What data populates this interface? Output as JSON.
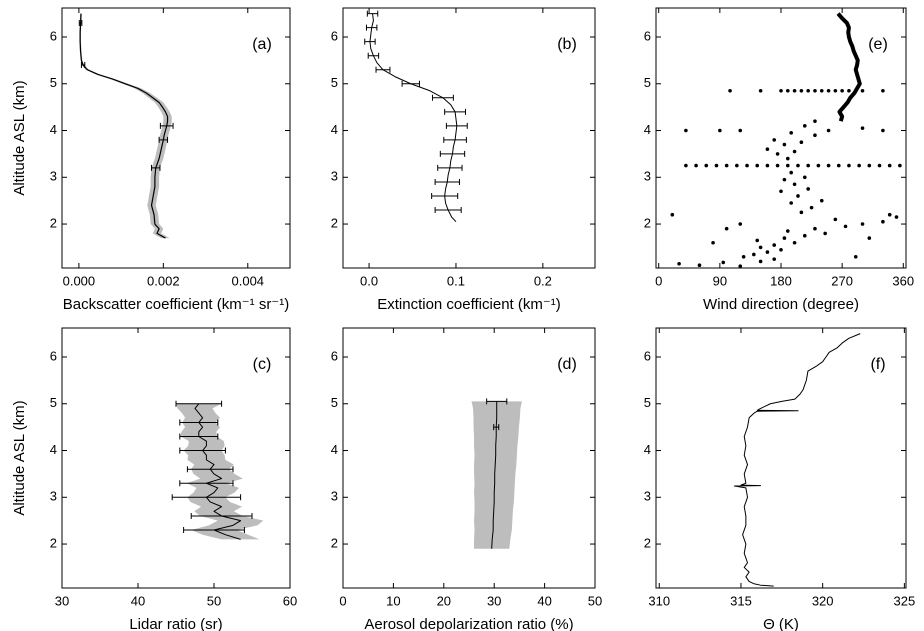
{
  "chart_data": [
    {
      "type": "line",
      "label": "(a)",
      "xlabel": "Backscatter coefficient (km⁻¹ sr⁻¹)",
      "ylabel": "Altitude ASL (km)",
      "xlim": [
        -0.0004,
        0.005
      ],
      "xticks": [
        {
          "value": 0,
          "label": "0.000"
        },
        {
          "value": 0.002,
          "label": "0.002"
        },
        {
          "value": 0.004,
          "label": "0.004"
        }
      ],
      "ylim": [
        1.06,
        6.62
      ],
      "yticks": [
        2,
        3,
        4,
        5,
        6
      ],
      "series": [
        {
          "color": "#000000",
          "band_color": "#bdbdbd",
          "linewidth": 1.2,
          "y": [
            6.5,
            6.3,
            6.1,
            5.9,
            5.7,
            5.5,
            5.4,
            5.3,
            5.2,
            5.1,
            5.0,
            4.9,
            4.8,
            4.7,
            4.6,
            4.5,
            4.4,
            4.3,
            4.2,
            4.1,
            4.0,
            3.9,
            3.8,
            3.6,
            3.4,
            3.2,
            3.0,
            2.8,
            2.6,
            2.4,
            2.2,
            2.0,
            1.9,
            1.8,
            1.7
          ],
          "values": [
            5e-05,
            4e-05,
            3e-05,
            3e-05,
            4e-05,
            6e-05,
            0.0001,
            0.0002,
            0.00045,
            0.0008,
            0.0011,
            0.0014,
            0.0016,
            0.00175,
            0.0019,
            0.00198,
            0.00205,
            0.0021,
            0.0021,
            0.00208,
            0.00205,
            0.00202,
            0.002,
            0.00195,
            0.0019,
            0.00182,
            0.0018,
            0.0018,
            0.00176,
            0.00172,
            0.00178,
            0.0018,
            0.0019,
            0.00185,
            0.00205
          ],
          "band_errors": [
            2e-05,
            2e-05,
            2e-05,
            2e-05,
            2e-05,
            2e-05,
            3e-05,
            4e-05,
            5e-05,
            6e-05,
            7e-05,
            8e-05,
            9e-05,
            0.0001,
            0.0001,
            0.0001,
            0.0001,
            0.0001,
            0.0001,
            0.0001,
            0.0001,
            0.0001,
            0.0001,
            0.0001,
            0.0001,
            0.0001,
            0.0001,
            0.0001,
            0.0001,
            0.0001,
            0.0001,
            0.0001,
            0.0001,
            0.0001,
            0.0001
          ],
          "errors": [
            null,
            3e-05,
            null,
            null,
            null,
            null,
            4e-05,
            null,
            null,
            null,
            null,
            null,
            null,
            null,
            null,
            null,
            null,
            null,
            null,
            0.00015,
            null,
            null,
            0.0001,
            null,
            null,
            0.0001,
            null,
            null,
            null,
            null,
            null,
            null,
            null,
            null,
            null
          ]
        }
      ]
    },
    {
      "type": "line",
      "label": "(b)",
      "xlabel": "Extinction coefficient (km⁻¹)",
      "xlim": [
        -0.03,
        0.26
      ],
      "xticks": [
        {
          "value": 0,
          "label": "0.0"
        },
        0.1,
        0.2
      ],
      "ylim": [
        1.06,
        6.62
      ],
      "yticks": [
        2,
        3,
        4,
        5,
        6
      ],
      "series": [
        {
          "color": "#000000",
          "linewidth": 1,
          "y": [
            6.5,
            6.35,
            6.2,
            6.05,
            5.9,
            5.75,
            5.6,
            5.45,
            5.3,
            5.15,
            5.0,
            4.85,
            4.7,
            4.55,
            4.4,
            4.25,
            4.1,
            3.95,
            3.8,
            3.65,
            3.5,
            3.35,
            3.2,
            3.05,
            2.9,
            2.75,
            2.6,
            2.45,
            2.3,
            2.15,
            2.05
          ],
          "values": [
            0.004,
            0.005,
            0.003,
            0.002,
            0.001,
            0.002,
            0.005,
            0.009,
            0.016,
            0.03,
            0.048,
            0.07,
            0.085,
            0.094,
            0.099,
            0.1,
            0.101,
            0.1,
            0.099,
            0.097,
            0.096,
            0.094,
            0.093,
            0.091,
            0.09,
            0.088,
            0.087,
            0.088,
            0.091,
            0.095,
            0.1
          ],
          "errors": [
            0.006,
            null,
            0.006,
            null,
            0.006,
            null,
            0.006,
            null,
            0.008,
            null,
            0.01,
            null,
            0.012,
            null,
            0.012,
            null,
            0.012,
            null,
            0.013,
            null,
            0.014,
            null,
            0.014,
            null,
            0.014,
            null,
            0.015,
            null,
            0.015,
            null,
            null
          ]
        }
      ]
    },
    {
      "type": "scatter",
      "label": "(e)",
      "xlabel": "Wind direction (degree)",
      "xlim": [
        -4,
        364
      ],
      "xticks": [
        0,
        90,
        180,
        270,
        360
      ],
      "ylim": [
        1.06,
        6.62
      ],
      "yticks": [
        2,
        3,
        4,
        5,
        6
      ],
      "series": [
        {
          "color": "#000000",
          "marker": "dot",
          "values": [
            30,
            60,
            95,
            120,
            150,
            170,
            125,
            140,
            160,
            180,
            150,
            170,
            200,
            145,
            185,
            215,
            245,
            190,
            230,
            275,
            300,
            330,
            350,
            20,
            260,
            210,
            225,
            195,
            240,
            205,
            180,
            220,
            200,
            185,
            215,
            195,
            190,
            175,
            200,
            160,
            185,
            210,
            170,
            230,
            195,
            40,
            90,
            120,
            250,
            300,
            215,
            230,
            330,
            80,
            100,
            310,
            290,
            340,
            120,
            40,
            55,
            70,
            85,
            100,
            115,
            130,
            145,
            160,
            175,
            190,
            205,
            220,
            235,
            250,
            265,
            280,
            295,
            310,
            325,
            340,
            355,
            105,
            150,
            180,
            190,
            200,
            210,
            220,
            230,
            240,
            250,
            260,
            270,
            280,
            290,
            300,
            330
          ],
          "y": [
            1.15,
            1.12,
            1.18,
            1.1,
            1.2,
            1.25,
            1.3,
            1.35,
            1.4,
            1.45,
            1.5,
            1.55,
            1.6,
            1.65,
            1.7,
            1.75,
            1.8,
            1.85,
            1.9,
            1.95,
            2.0,
            2.05,
            2.15,
            2.2,
            2.1,
            2.25,
            2.35,
            2.45,
            2.5,
            2.6,
            2.7,
            2.75,
            2.85,
            2.95,
            3.0,
            3.1,
            3.4,
            3.5,
            3.55,
            3.6,
            3.7,
            3.75,
            3.8,
            3.9,
            3.95,
            4.0,
            4.0,
            4.0,
            4.0,
            4.05,
            4.1,
            4.2,
            4.0,
            1.6,
            1.9,
            1.7,
            1.3,
            2.2,
            2.0,
            3.25,
            3.25,
            3.25,
            3.25,
            3.25,
            3.25,
            3.25,
            3.25,
            3.25,
            3.25,
            3.25,
            3.25,
            3.25,
            3.25,
            3.25,
            3.25,
            3.25,
            3.25,
            3.25,
            3.25,
            3.25,
            3.25,
            4.85,
            4.85,
            4.85,
            4.85,
            4.85,
            4.85,
            4.85,
            4.85,
            4.85,
            4.85,
            4.85,
            4.85,
            4.85,
            4.85,
            4.85,
            4.85
          ]
        },
        {
          "color": "#000000",
          "linewidth": 4,
          "y": [
            4.2,
            4.3,
            4.4,
            4.5,
            4.6,
            4.7,
            4.8,
            4.9,
            5.0,
            5.1,
            5.2,
            5.3,
            5.4,
            5.5,
            5.6,
            5.7,
            5.8,
            5.9,
            6.0,
            6.1,
            6.2,
            6.3,
            6.4,
            6.5
          ],
          "values": [
            268,
            270,
            266,
            272,
            278,
            282,
            288,
            292,
            296,
            294,
            292,
            290,
            292,
            293,
            290,
            287,
            285,
            282,
            280,
            279,
            280,
            277,
            270,
            264
          ]
        }
      ]
    },
    {
      "type": "line",
      "label": "(c)",
      "xlabel": "Lidar ratio (sr)",
      "ylabel": "Altitude ASL (km)",
      "xlim": [
        30,
        60
      ],
      "xticks": [
        30,
        40,
        50,
        60
      ],
      "ylim": [
        1.06,
        6.62
      ],
      "yticks": [
        2,
        3,
        4,
        5,
        6
      ],
      "series": [
        {
          "color": "#000000",
          "band_color": "#bdbdbd",
          "linewidth": 1,
          "y": [
            2.1,
            2.2,
            2.3,
            2.4,
            2.5,
            2.6,
            2.7,
            2.8,
            2.9,
            3.0,
            3.1,
            3.2,
            3.3,
            3.4,
            3.5,
            3.6,
            3.7,
            3.8,
            3.9,
            4.0,
            4.1,
            4.2,
            4.3,
            4.4,
            4.5,
            4.6,
            4.7,
            4.8,
            4.9,
            5.0
          ],
          "values": [
            53.5,
            51.5,
            50,
            52.5,
            53.5,
            51,
            50,
            51,
            49.5,
            49,
            50,
            50.5,
            49,
            51,
            50,
            49.5,
            50,
            49,
            49,
            48.5,
            49,
            49,
            48,
            48,
            48.5,
            48,
            48.5,
            48,
            47.5,
            48
          ],
          "band_errors": [
            2.5,
            3,
            3,
            3.2,
            3,
            2.8,
            2.6,
            2.7,
            2.6,
            2.5,
            2.7,
            2.8,
            2.6,
            2.8,
            2.7,
            2.5,
            2.6,
            2.5,
            2.4,
            2.5,
            2.4,
            2.3,
            2.4,
            2.3,
            2.3,
            2.2,
            2.3,
            2.2,
            2.3,
            3
          ],
          "errors": [
            null,
            null,
            4,
            null,
            null,
            4,
            null,
            null,
            null,
            4.5,
            null,
            null,
            3.5,
            null,
            null,
            3,
            null,
            null,
            null,
            3,
            null,
            null,
            2.5,
            null,
            null,
            2.5,
            null,
            null,
            null,
            3
          ]
        }
      ]
    },
    {
      "type": "line",
      "label": "(d)",
      "xlabel": "Aerosol depolarization ratio (%)",
      "xlim": [
        0,
        50
      ],
      "xticks": [
        0,
        10,
        20,
        30,
        40,
        50
      ],
      "ylim": [
        1.06,
        6.62
      ],
      "yticks": [
        2,
        3,
        4,
        5,
        6
      ],
      "series": [
        {
          "color": "#000000",
          "band_color": "#bdbdbd",
          "linewidth": 1,
          "y": [
            1.9,
            2.1,
            2.3,
            2.5,
            2.7,
            2.9,
            3.1,
            3.3,
            3.5,
            3.7,
            3.9,
            4.1,
            4.3,
            4.5,
            4.7,
            4.9,
            5.05
          ],
          "values": [
            29.5,
            29.6,
            29.8,
            29.8,
            29.9,
            30,
            30,
            30.1,
            30.1,
            30.2,
            30.3,
            30.3,
            30.4,
            30.4,
            30.5,
            30.5,
            30.5
          ],
          "band_errors": [
            3.5,
            3.6,
            3.7,
            3.8,
            3.8,
            3.9,
            4.0,
            4.0,
            4.1,
            4.2,
            4.2,
            4.3,
            4.4,
            4.5,
            4.6,
            4.7,
            5.0
          ],
          "errors": [
            null,
            null,
            null,
            null,
            null,
            null,
            null,
            null,
            null,
            null,
            null,
            null,
            null,
            0.5,
            null,
            null,
            2
          ]
        }
      ]
    },
    {
      "type": "line",
      "label": "(f)",
      "xlabel": "Θ (K)",
      "xlim": [
        309.8,
        325.1
      ],
      "xticks": [
        310,
        315,
        320,
        325
      ],
      "ylim": [
        1.06,
        6.62
      ],
      "yticks": [
        2,
        3,
        4,
        5,
        6
      ],
      "series": [
        {
          "color": "#000000",
          "linewidth": 1,
          "y": [
            1.1,
            1.12,
            1.15,
            1.2,
            1.3,
            1.4,
            1.5,
            1.6,
            1.8,
            2.0,
            2.2,
            2.4,
            2.6,
            2.8,
            3.0,
            3.2,
            3.24,
            3.25,
            3.26,
            3.3,
            3.5,
            3.7,
            3.9,
            4.1,
            4.3,
            4.5,
            4.7,
            4.8,
            4.84,
            4.85,
            4.86,
            4.9,
            5.0,
            5.05,
            5.1,
            5.2,
            5.3,
            5.5,
            5.7,
            5.8,
            5.9,
            6.0,
            6.1,
            6.2,
            6.3,
            6.4,
            6.5
          ],
          "values": [
            317,
            316.2,
            315.8,
            315.5,
            315.3,
            315.5,
            315.2,
            315.4,
            315.2,
            315.3,
            315.1,
            315.3,
            315.3,
            315.2,
            315.4,
            315.3,
            314.6,
            316.2,
            315.0,
            315.3,
            315.2,
            315.4,
            315.2,
            315.3,
            315.2,
            315.4,
            315.5,
            315.8,
            316,
            318.5,
            316,
            316.2,
            316.8,
            317.5,
            318.3,
            318.6,
            318.8,
            319,
            319.1,
            319.6,
            320,
            320.2,
            320.4,
            320.9,
            321.2,
            321.6,
            322.3
          ]
        }
      ]
    }
  ]
}
